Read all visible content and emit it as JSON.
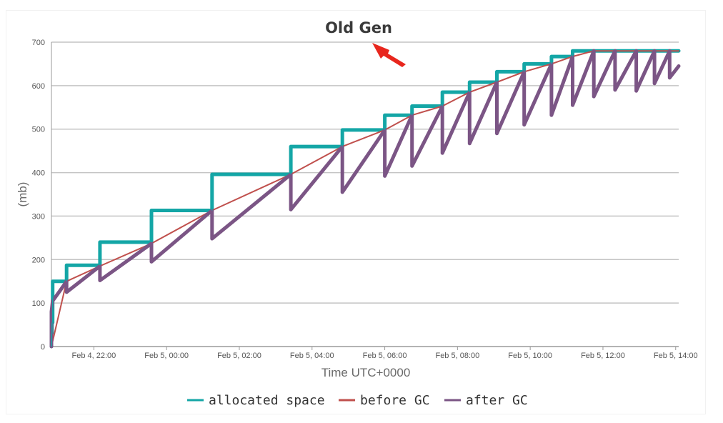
{
  "chart_data": {
    "type": "line",
    "title": "Old Gen",
    "xlabel": "Time UTC+0000",
    "ylabel": "(mb)",
    "ylim": [
      0,
      700
    ],
    "yticks": [
      0,
      100,
      200,
      300,
      400,
      500,
      600,
      700
    ],
    "xlim": [
      "Feb 4, 20:50",
      "Feb 5, 14:05"
    ],
    "xticks": [
      "Feb 4, 22:00",
      "Feb 5, 00:00",
      "Feb 5, 02:00",
      "Feb 5, 04:00",
      "Feb 5, 06:00",
      "Feb 5, 08:00",
      "Feb 5, 10:00",
      "Feb 5, 12:00",
      "Feb 5, 14:00"
    ],
    "grid": true,
    "legend_position": "bottom",
    "series": [
      {
        "name": "allocated space",
        "color": "#14a6a6",
        "x": [
          "Feb 4, 20:50",
          "Feb 4, 20:50",
          "Feb 4, 20:51",
          "Feb 4, 20:51",
          "Feb 4, 20:52",
          "Feb 4, 20:52",
          "Feb 4, 21:15",
          "Feb 4, 21:15",
          "Feb 4, 22:10",
          "Feb 4, 22:10",
          "Feb 4, 23:35",
          "Feb 4, 23:35",
          "Feb 5, 01:15",
          "Feb 5, 01:15",
          "Feb 5, 03:25",
          "Feb 5, 03:25",
          "Feb 5, 04:50",
          "Feb 5, 04:50",
          "Feb 5, 06:00",
          "Feb 5, 06:00",
          "Feb 5, 06:45",
          "Feb 5, 06:45",
          "Feb 5, 07:35",
          "Feb 5, 07:35",
          "Feb 5, 08:20",
          "Feb 5, 08:20",
          "Feb 5, 09:05",
          "Feb 5, 09:05",
          "Feb 5, 09:50",
          "Feb 5, 09:50",
          "Feb 5, 10:35",
          "Feb 5, 10:35",
          "Feb 5, 11:10",
          "Feb 5, 11:10",
          "Feb 5, 14:05"
        ],
        "y": [
          0,
          30,
          30,
          55,
          55,
          150,
          150,
          187,
          187,
          240,
          240,
          313,
          313,
          396,
          396,
          460,
          460,
          498,
          498,
          532,
          532,
          553,
          553,
          585,
          585,
          608,
          608,
          632,
          632,
          650,
          650,
          667,
          667,
          680,
          680
        ]
      },
      {
        "name": "before GC",
        "color": "#c0504d",
        "x": [
          "Feb 4, 20:50",
          "Feb 4, 21:15",
          "Feb 4, 22:10",
          "Feb 4, 23:35",
          "Feb 5, 01:15",
          "Feb 5, 03:25",
          "Feb 5, 04:50",
          "Feb 5, 06:00",
          "Feb 5, 06:45",
          "Feb 5, 07:35",
          "Feb 5, 08:20",
          "Feb 5, 09:05",
          "Feb 5, 09:50",
          "Feb 5, 10:35",
          "Feb 5, 11:10",
          "Feb 5, 11:45",
          "Feb 5, 12:20",
          "Feb 5, 12:55",
          "Feb 5, 13:25",
          "Feb 5, 13:50",
          "Feb 5, 14:05"
        ],
        "y": [
          0,
          150,
          185,
          237,
          313,
          396,
          460,
          498,
          532,
          553,
          585,
          608,
          632,
          650,
          667,
          680,
          680,
          680,
          680,
          680,
          680
        ]
      },
      {
        "name": "after GC",
        "color": "#7b5585",
        "x": [
          "Feb 4, 20:50",
          "Feb 4, 20:50",
          "Feb 4, 20:52",
          "Feb 4, 21:05",
          "Feb 4, 21:15",
          "Feb 4, 21:15",
          "Feb 4, 22:10",
          "Feb 4, 22:10",
          "Feb 4, 23:35",
          "Feb 4, 23:35",
          "Feb 5, 01:15",
          "Feb 5, 01:15",
          "Feb 5, 03:25",
          "Feb 5, 03:25",
          "Feb 5, 04:50",
          "Feb 5, 04:50",
          "Feb 5, 06:00",
          "Feb 5, 06:00",
          "Feb 5, 06:45",
          "Feb 5, 06:45",
          "Feb 5, 07:35",
          "Feb 5, 07:35",
          "Feb 5, 08:20",
          "Feb 5, 08:20",
          "Feb 5, 09:05",
          "Feb 5, 09:05",
          "Feb 5, 09:50",
          "Feb 5, 09:50",
          "Feb 5, 10:35",
          "Feb 5, 10:35",
          "Feb 5, 11:10",
          "Feb 5, 11:10",
          "Feb 5, 11:45",
          "Feb 5, 11:45",
          "Feb 5, 12:20",
          "Feb 5, 12:20",
          "Feb 5, 12:55",
          "Feb 5, 12:55",
          "Feb 5, 13:25",
          "Feb 5, 13:25",
          "Feb 5, 13:50",
          "Feb 5, 13:50",
          "Feb 5, 14:05"
        ],
        "y": [
          0,
          80,
          105,
          130,
          150,
          125,
          185,
          152,
          237,
          195,
          313,
          248,
          396,
          315,
          460,
          355,
          498,
          392,
          532,
          415,
          553,
          445,
          585,
          467,
          608,
          490,
          632,
          510,
          650,
          532,
          667,
          555,
          680,
          575,
          680,
          590,
          680,
          588,
          680,
          605,
          680,
          618,
          645
        ]
      }
    ]
  }
}
